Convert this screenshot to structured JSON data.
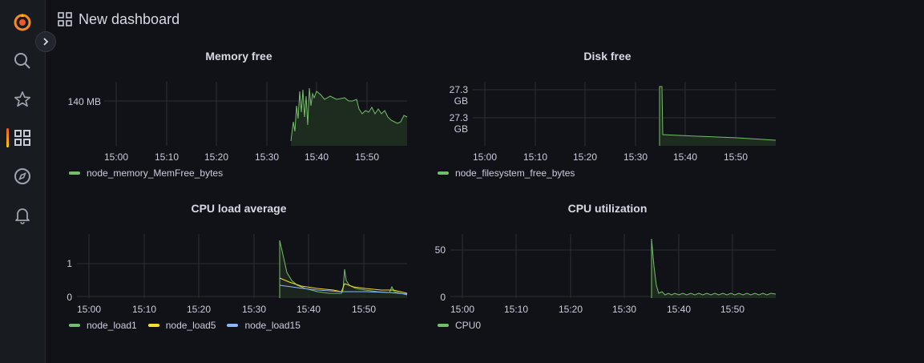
{
  "dashboard": {
    "title": "New dashboard"
  },
  "sidebar": {
    "items": [
      {
        "icon": "grafana-logo-icon"
      },
      {
        "icon": "search-icon"
      },
      {
        "icon": "star-icon"
      },
      {
        "icon": "dashboards-icon",
        "active": true
      },
      {
        "icon": "explore-compass-icon"
      },
      {
        "icon": "alerting-bell-icon"
      }
    ]
  },
  "panels": [
    {
      "title": "Memory free",
      "y_ticks": [
        "140 MB"
      ],
      "x_ticks": [
        "15:00",
        "15:10",
        "15:20",
        "15:30",
        "15:40",
        "15:50"
      ],
      "legend": [
        {
          "label": "node_memory_MemFree_bytes",
          "color": "#73bf69"
        }
      ]
    },
    {
      "title": "Disk free",
      "y_ticks": [
        "27.3 GB",
        "27.3 GB"
      ],
      "x_ticks": [
        "15:00",
        "15:10",
        "15:20",
        "15:30",
        "15:40",
        "15:50"
      ],
      "legend": [
        {
          "label": "node_filesystem_free_bytes",
          "color": "#73bf69"
        }
      ]
    },
    {
      "title": "CPU load average",
      "y_ticks": [
        "1",
        "0"
      ],
      "x_ticks": [
        "15:00",
        "15:10",
        "15:20",
        "15:30",
        "15:40",
        "15:50"
      ],
      "legend": [
        {
          "label": "node_load1",
          "color": "#73bf69"
        },
        {
          "label": "node_load5",
          "color": "#fade2a"
        },
        {
          "label": "node_load15",
          "color": "#8ab8ff"
        }
      ]
    },
    {
      "title": "CPU utilization",
      "y_ticks": [
        "50",
        "0"
      ],
      "x_ticks": [
        "15:00",
        "15:10",
        "15:20",
        "15:30",
        "15:40",
        "15:50"
      ],
      "legend": [
        {
          "label": "CPU0",
          "color": "#73bf69"
        }
      ]
    }
  ]
}
